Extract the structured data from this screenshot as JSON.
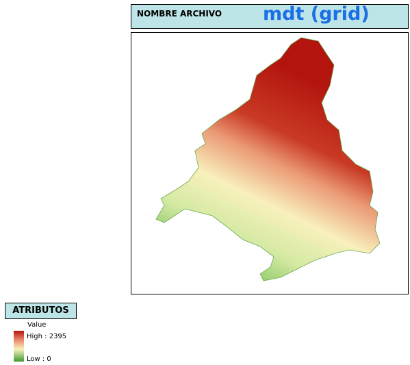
{
  "header": {
    "file_label": "NOMBRE ARCHIVO",
    "title": "mdt (grid)"
  },
  "legend": {
    "title": "ATRIBUTOS",
    "field": "Value",
    "high": "High : 2395",
    "low": "Low : 0"
  }
}
